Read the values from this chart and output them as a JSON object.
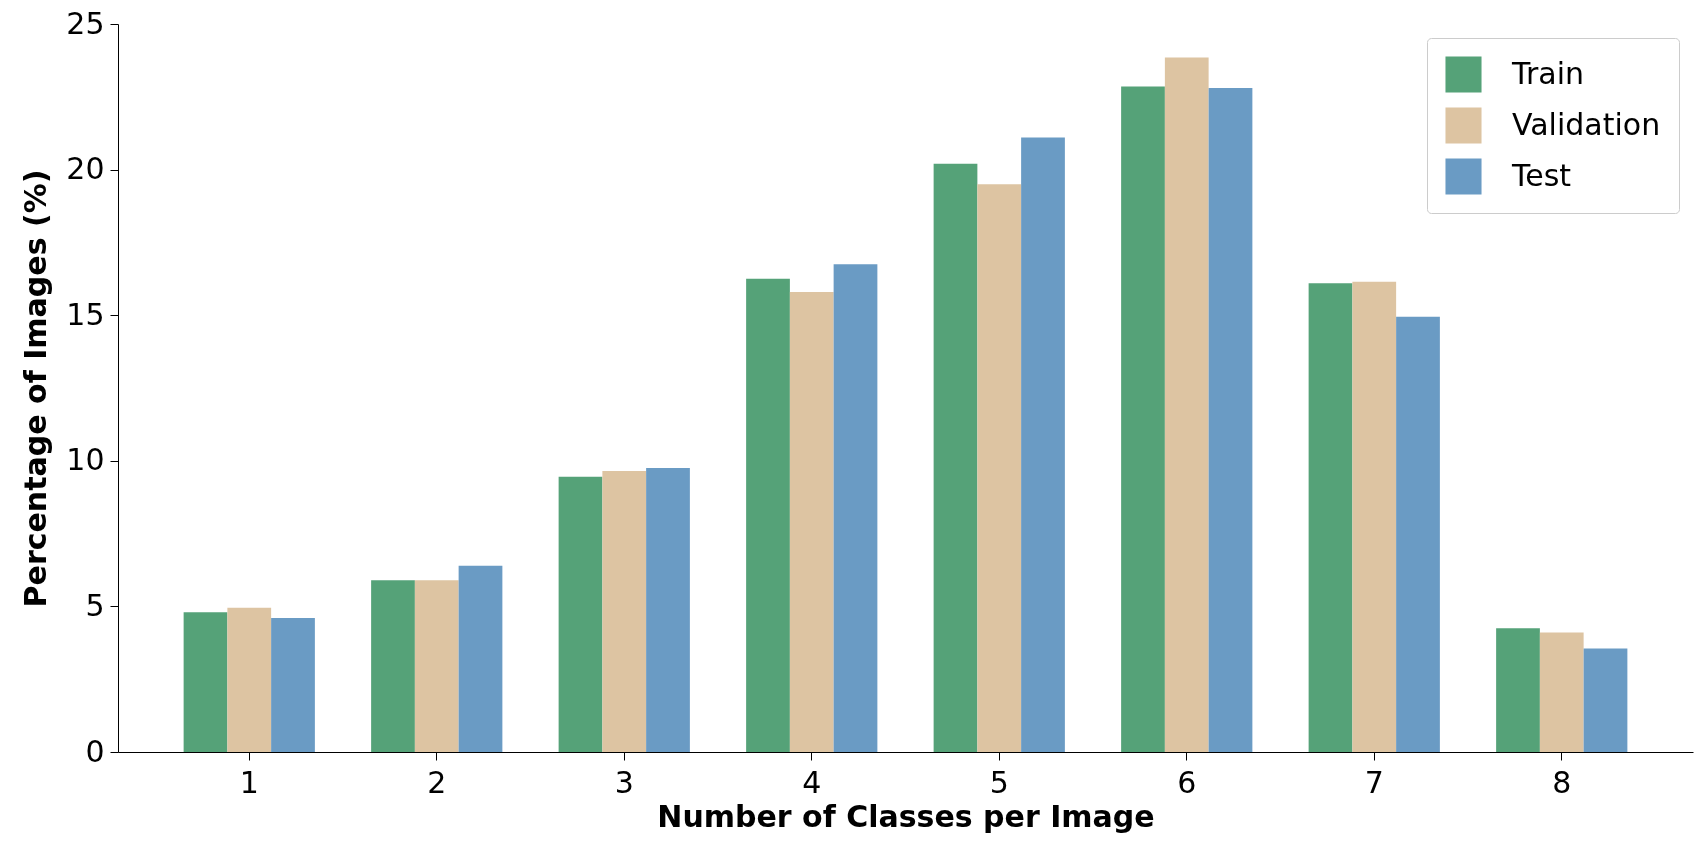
{
  "chart_data": {
    "type": "bar",
    "xlabel": "Number of Classes per Image",
    "ylabel": "Percentage of Images (%)",
    "categories": [
      "1",
      "2",
      "3",
      "4",
      "5",
      "6",
      "7",
      "8"
    ],
    "series": [
      {
        "name": "Train",
        "color": "#55a278",
        "values": [
          4.8,
          5.9,
          9.45,
          16.25,
          20.2,
          22.85,
          16.1,
          4.25
        ]
      },
      {
        "name": "Validation",
        "color": "#ddc4a2",
        "values": [
          4.95,
          5.9,
          9.65,
          15.8,
          19.5,
          23.85,
          16.15,
          4.1
        ]
      },
      {
        "name": "Test",
        "color": "#6a9bc4",
        "values": [
          4.6,
          6.4,
          9.75,
          16.75,
          21.1,
          22.8,
          14.95,
          3.55
        ]
      }
    ],
    "ylim": [
      0,
      25
    ],
    "yticks": [
      0,
      5,
      10,
      15,
      20,
      25
    ],
    "grid": false,
    "legend": "top right"
  }
}
